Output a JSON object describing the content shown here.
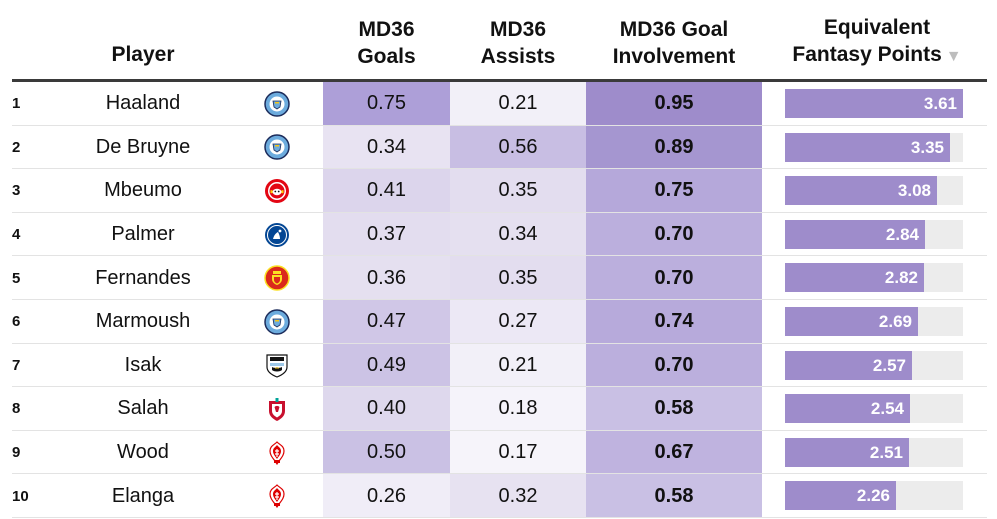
{
  "headers": {
    "player": "Player",
    "goals_line1": "MD36",
    "goals_line2": "Goals",
    "assists_line1": "MD36",
    "assists_line2": "Assists",
    "gi_line1": "MD36 Goal",
    "gi_line2": "Involvement",
    "fp_line1": "Equivalent",
    "fp_line2": "Fantasy Points",
    "sort_indicator": "▼"
  },
  "fantasy_points_max": 3.61,
  "rows": [
    {
      "rank": "1",
      "player": "Haaland",
      "club_icon": "man-city-crest-icon",
      "goals": "0.75",
      "assists": "0.21",
      "goal_involvement": "0.95",
      "fantasy_points": "3.61",
      "goals_color": "#ad9fd8",
      "assists_color": "#f2f0f8",
      "gi_color": "#9e8ccb"
    },
    {
      "rank": "2",
      "player": "De Bruyne",
      "club_icon": "man-city-crest-icon",
      "goals": "0.34",
      "assists": "0.56",
      "goal_involvement": "0.89",
      "fantasy_points": "3.35",
      "goals_color": "#e8e3f2",
      "assists_color": "#c8bee3",
      "gi_color": "#a596d0"
    },
    {
      "rank": "3",
      "player": "Mbeumo",
      "club_icon": "brentford-crest-icon",
      "goals": "0.41",
      "assists": "0.35",
      "goal_involvement": "0.75",
      "fantasy_points": "3.08",
      "goals_color": "#dcd5ec",
      "assists_color": "#e3ddef",
      "gi_color": "#b5a8da"
    },
    {
      "rank": "4",
      "player": "Palmer",
      "club_icon": "chelsea-crest-icon",
      "goals": "0.37",
      "assists": "0.34",
      "goal_involvement": "0.70",
      "fantasy_points": "2.84",
      "goals_color": "#e3ddef",
      "assists_color": "#e5e0f0",
      "gi_color": "#bbafdd"
    },
    {
      "rank": "5",
      "player": "Fernandes",
      "club_icon": "man-utd-crest-icon",
      "goals": "0.36",
      "assists": "0.35",
      "goal_involvement": "0.70",
      "fantasy_points": "2.82",
      "goals_color": "#e5e0f0",
      "assists_color": "#e3ddef",
      "gi_color": "#bbafdd"
    },
    {
      "rank": "6",
      "player": "Marmoush",
      "club_icon": "man-city-crest-icon",
      "goals": "0.47",
      "assists": "0.27",
      "goal_involvement": "0.74",
      "fantasy_points": "2.69",
      "goals_color": "#d0c7e7",
      "assists_color": "#ece8f5",
      "gi_color": "#b7aadb"
    },
    {
      "rank": "7",
      "player": "Isak",
      "club_icon": "newcastle-crest-icon",
      "goals": "0.49",
      "assists": "0.21",
      "goal_involvement": "0.70",
      "fantasy_points": "2.57",
      "goals_color": "#ccc3e5",
      "assists_color": "#f2f0f8",
      "gi_color": "#bbafdd"
    },
    {
      "rank": "8",
      "player": "Salah",
      "club_icon": "liverpool-crest-icon",
      "goals": "0.40",
      "assists": "0.18",
      "goal_involvement": "0.58",
      "fantasy_points": "2.54",
      "goals_color": "#ded8ed",
      "assists_color": "#f5f3fa",
      "gi_color": "#c9c0e4"
    },
    {
      "rank": "9",
      "player": "Wood",
      "club_icon": "nottingham-forest-crest-icon",
      "goals": "0.50",
      "assists": "0.17",
      "goal_involvement": "0.67",
      "fantasy_points": "2.51",
      "goals_color": "#cac1e4",
      "assists_color": "#f6f4fa",
      "gi_color": "#bfb3df"
    },
    {
      "rank": "10",
      "player": "Elanga",
      "club_icon": "nottingham-forest-crest-icon",
      "goals": "0.26",
      "assists": "0.32",
      "goal_involvement": "0.58",
      "fantasy_points": "2.26",
      "goals_color": "#f0edf7",
      "assists_color": "#e7e2f1",
      "gi_color": "#c9c0e4"
    }
  ]
}
